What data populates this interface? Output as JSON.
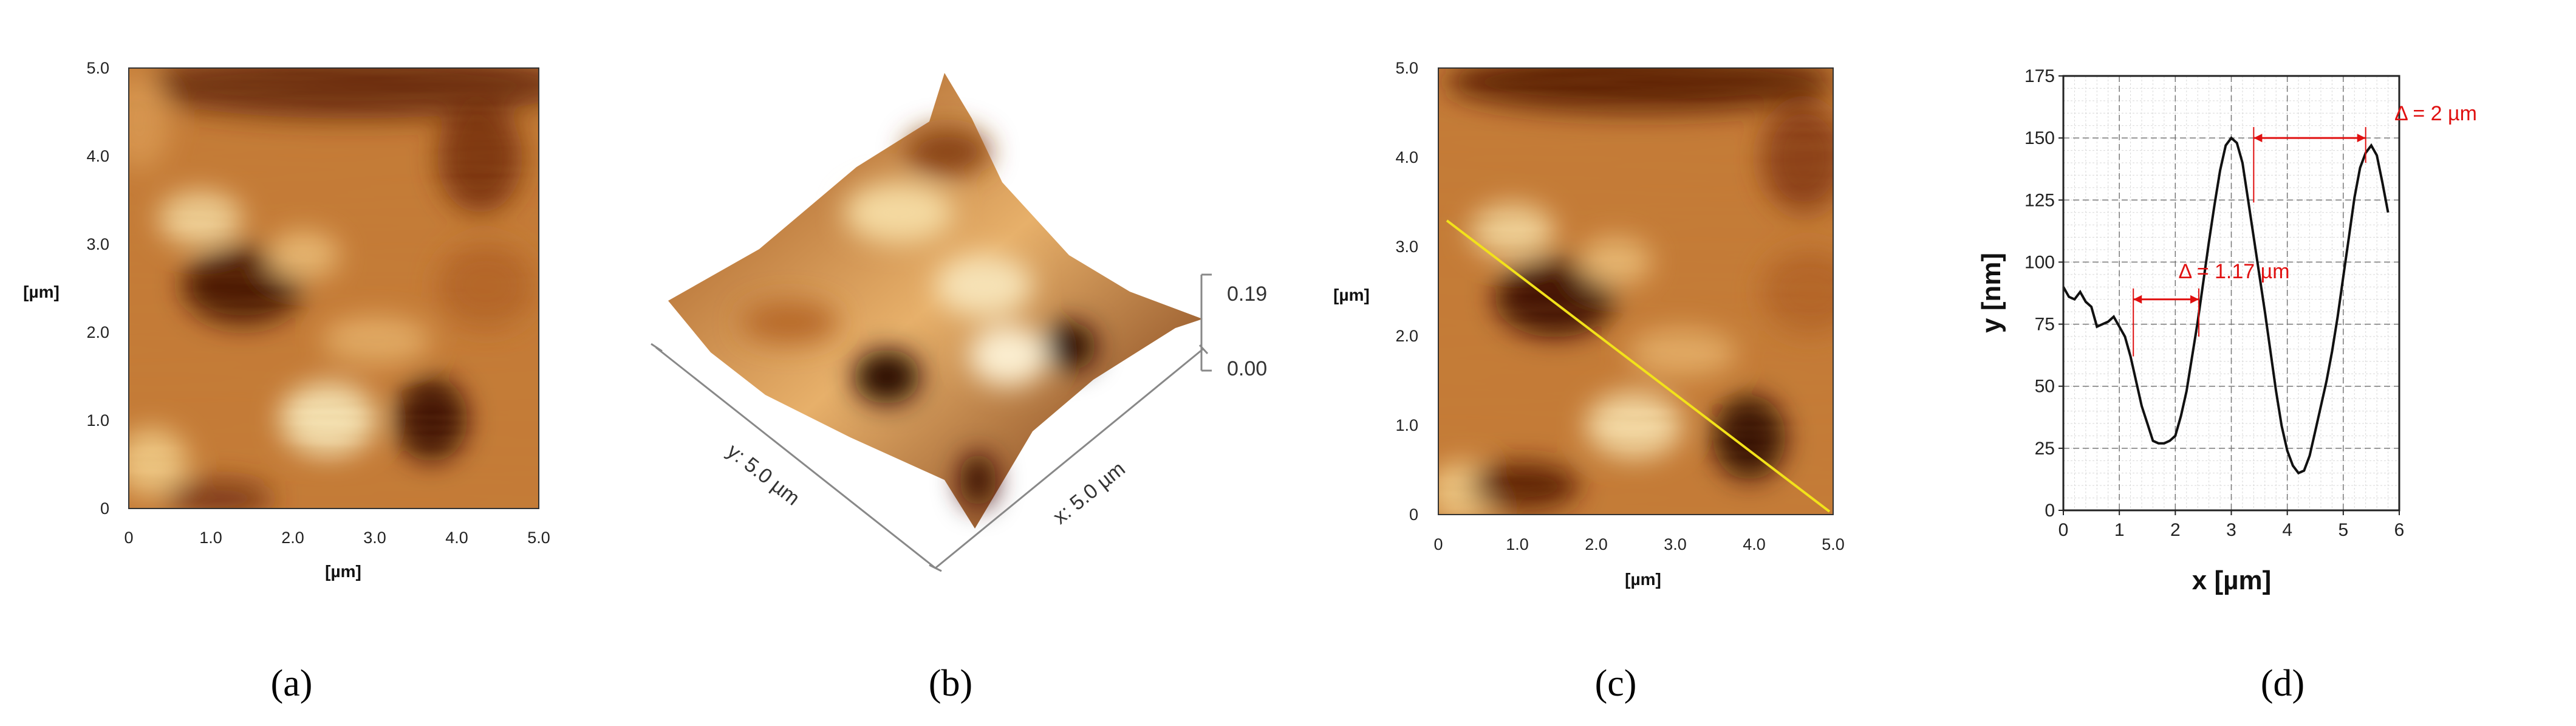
{
  "figure": {
    "panel_a": {
      "caption": "(a)",
      "x_unit": "[µm]",
      "y_unit": "[µm]",
      "x_ticks": [
        "0",
        "1.0",
        "2.0",
        "3.0",
        "4.0",
        "5.0"
      ],
      "y_ticks": [
        "0",
        "1.0",
        "2.0",
        "3.0",
        "4.0",
        "5.0"
      ]
    },
    "panel_b": {
      "caption": "(b)",
      "y_axis_label": "y: 5.0 µm",
      "x_axis_label": "x: 5.0 µm",
      "z_top": "0.19",
      "z_bottom": "0.00"
    },
    "panel_c": {
      "caption": "(c)",
      "x_unit": "[µm]",
      "y_unit": "[µm]",
      "x_ticks": [
        "0",
        "1.0",
        "2.0",
        "3.0",
        "4.0",
        "5.0"
      ],
      "y_ticks": [
        "0",
        "1.0",
        "2.0",
        "3.0",
        "4.0",
        "5.0"
      ],
      "line_color": "#f2e21a"
    },
    "panel_d": {
      "caption": "(d)",
      "annotation_1": "Δ = 1.17 µm",
      "annotation_2": "Δ = 2 µm",
      "annotation_color": "#e01010"
    }
  },
  "chart_data": [
    {
      "type": "heatmap",
      "title": "",
      "xlabel": "[µm]",
      "ylabel": "[µm]",
      "xlim": [
        0,
        5.0
      ],
      "ylim": [
        0,
        5.0
      ],
      "colormap": [
        "#4a1204",
        "#8a3a10",
        "#c06a28",
        "#dc9448",
        "#eebc74",
        "#f8e6b8"
      ]
    },
    {
      "type": "line",
      "title": "",
      "xlabel": "x [µm]",
      "ylabel": "y [nm]",
      "xlim": [
        0,
        6
      ],
      "ylim": [
        0,
        175
      ],
      "x_ticks": [
        0,
        1,
        2,
        3,
        4,
        5,
        6
      ],
      "y_ticks": [
        0,
        25,
        50,
        75,
        100,
        125,
        150,
        175
      ],
      "grid": true,
      "series": [
        {
          "color": "#111111",
          "x": [
            0.0,
            0.1,
            0.2,
            0.3,
            0.4,
            0.5,
            0.6,
            0.7,
            0.8,
            0.9,
            1.0,
            1.1,
            1.2,
            1.3,
            1.4,
            1.5,
            1.6,
            1.7,
            1.8,
            1.9,
            2.0,
            2.1,
            2.2,
            2.3,
            2.4,
            2.5,
            2.6,
            2.7,
            2.8,
            2.9,
            3.0,
            3.1,
            3.2,
            3.3,
            3.4,
            3.5,
            3.6,
            3.7,
            3.8,
            3.9,
            4.0,
            4.1,
            4.2,
            4.3,
            4.4,
            4.5,
            4.6,
            4.7,
            4.8,
            4.9,
            5.0,
            5.1,
            5.2,
            5.3,
            5.4,
            5.5,
            5.6,
            5.7,
            5.8
          ],
          "y": [
            90,
            86,
            85,
            88,
            84,
            82,
            74,
            75,
            76,
            78,
            74,
            70,
            62,
            52,
            42,
            35,
            28,
            27,
            27,
            28,
            30,
            38,
            48,
            62,
            76,
            92,
            108,
            123,
            137,
            147,
            150,
            148,
            140,
            125,
            110,
            95,
            80,
            64,
            48,
            34,
            24,
            18,
            15,
            16,
            22,
            32,
            42,
            52,
            64,
            78,
            94,
            110,
            126,
            138,
            144,
            147,
            143,
            132,
            120
          ]
        }
      ]
    }
  ]
}
